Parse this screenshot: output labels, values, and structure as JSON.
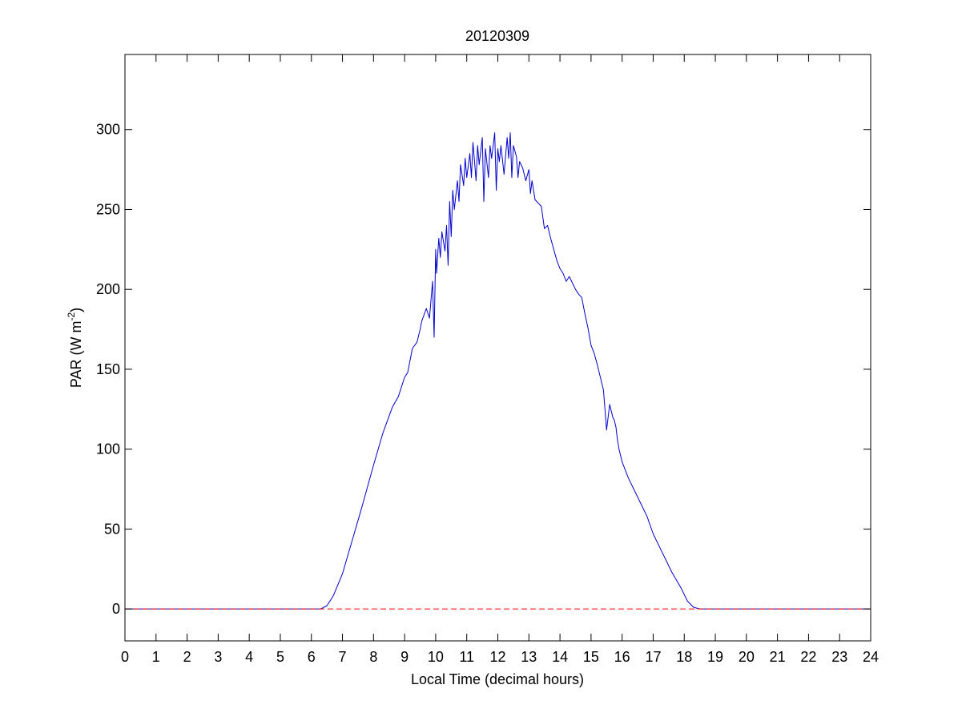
{
  "chart_data": {
    "type": "line",
    "title": "20120309",
    "xlabel": "Local Time (decimal hours)",
    "ylabel": {
      "main": "PAR (W m",
      "superscript": "-2",
      "close": ")"
    },
    "xlim": [
      0,
      24
    ],
    "ylim": [
      -20,
      347
    ],
    "xticks": [
      0,
      1,
      2,
      3,
      4,
      5,
      6,
      7,
      8,
      9,
      10,
      11,
      12,
      13,
      14,
      15,
      16,
      17,
      18,
      19,
      20,
      21,
      22,
      23,
      24
    ],
    "yticks": [
      0,
      50,
      100,
      150,
      200,
      250,
      300
    ],
    "grid": false,
    "legend": "none",
    "series": [
      {
        "color": "#0000cc",
        "style": "solid",
        "x": [
          0,
          6.3,
          6.5,
          6.7,
          7.0,
          7.3,
          7.6,
          8.0,
          8.3,
          8.6,
          8.8,
          9.0,
          9.1,
          9.25,
          9.4,
          9.5,
          9.55,
          9.7,
          9.8,
          9.9,
          9.95,
          10.0,
          10.03,
          10.1,
          10.15,
          10.2,
          10.3,
          10.35,
          10.4,
          10.45,
          10.5,
          10.55,
          10.6,
          10.7,
          10.75,
          10.8,
          10.9,
          10.95,
          11.0,
          11.1,
          11.15,
          11.2,
          11.3,
          11.35,
          11.4,
          11.5,
          11.55,
          11.6,
          11.7,
          11.75,
          11.8,
          11.9,
          11.95,
          12.0,
          12.05,
          12.1,
          12.2,
          12.3,
          12.35,
          12.4,
          12.45,
          12.5,
          12.6,
          12.65,
          12.7,
          12.8,
          12.9,
          13.0,
          13.05,
          13.1,
          13.2,
          13.3,
          13.4,
          13.5,
          13.6,
          13.7,
          13.8,
          13.9,
          14.0,
          14.1,
          14.2,
          14.3,
          14.4,
          14.5,
          14.6,
          14.7,
          14.8,
          14.9,
          15.0,
          15.1,
          15.2,
          15.3,
          15.4,
          15.5,
          15.6,
          15.7,
          15.75,
          15.8,
          15.85,
          15.9,
          16.0,
          16.2,
          16.5,
          16.8,
          17.0,
          17.3,
          17.6,
          17.9,
          18.1,
          18.3,
          18.5,
          24
        ],
        "y": [
          0,
          0,
          2,
          8,
          22,
          42,
          62,
          90,
          110,
          126,
          133,
          145,
          148,
          163,
          167,
          175,
          180,
          188,
          182,
          205,
          170,
          225,
          210,
          232,
          220,
          236,
          224,
          240,
          215,
          255,
          233,
          262,
          250,
          268,
          255,
          278,
          265,
          282,
          270,
          285,
          270,
          292,
          268,
          290,
          278,
          295,
          255,
          288,
          270,
          290,
          282,
          298,
          262,
          288,
          280,
          290,
          272,
          295,
          282,
          298,
          270,
          290,
          283,
          270,
          280,
          276,
          268,
          275,
          260,
          268,
          256,
          254,
          252,
          238,
          240,
          232,
          225,
          218,
          213,
          210,
          205,
          208,
          204,
          200,
          197,
          195,
          185,
          176,
          165,
          160,
          153,
          145,
          137,
          112,
          128,
          120,
          118,
          114,
          106,
          100,
          92,
          82,
          70,
          58,
          47,
          35,
          23,
          13,
          5,
          1,
          0,
          0
        ]
      },
      {
        "color": "#ff0000",
        "style": "dashed",
        "x": [
          0,
          24
        ],
        "y": [
          0,
          0
        ]
      }
    ]
  }
}
